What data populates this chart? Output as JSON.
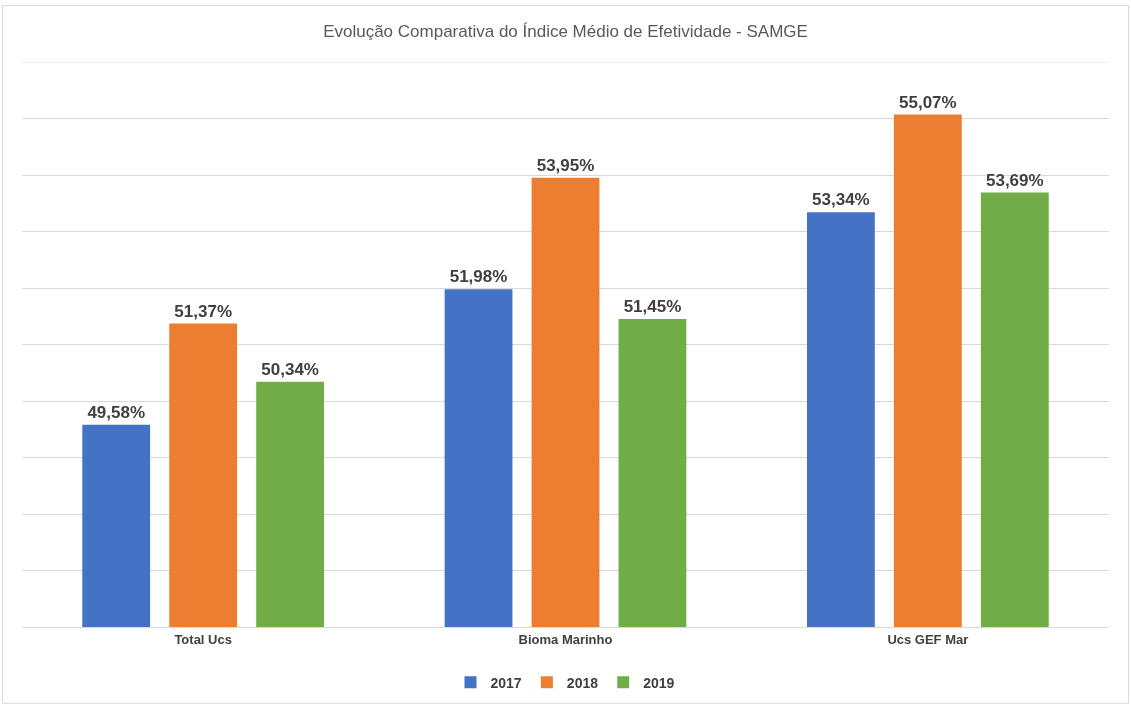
{
  "chart_data": {
    "type": "bar",
    "title": "Evolução Comparativa do Índice Médio de Efetividade - SAMGE",
    "categories": [
      "Total Ucs",
      "Bioma Marinho",
      "Ucs GEF Mar"
    ],
    "series": [
      {
        "name": "2017",
        "color": "#4472c4",
        "values": [
          49.58,
          51.98,
          53.34
        ],
        "value_labels": [
          "49,58%",
          "51,98%",
          "53,34%"
        ]
      },
      {
        "name": "2018",
        "color": "#ed7d31",
        "values": [
          51.37,
          53.95,
          55.07
        ],
        "value_labels": [
          "51,37%",
          "53,95%",
          "55,07%"
        ]
      },
      {
        "name": "2019",
        "color": "#70ad47",
        "values": [
          50.34,
          51.45,
          53.69
        ],
        "value_labels": [
          "50,34%",
          "51,45%",
          "53,69%"
        ]
      }
    ],
    "ylim": [
      46,
      56
    ],
    "yticks": [
      {
        "value": 46,
        "label": null
      },
      {
        "value": 47,
        "label": null
      },
      {
        "value": 48,
        "label": null
      },
      {
        "value": 49,
        "label": null
      },
      {
        "value": 50,
        "label": null
      },
      {
        "value": 51,
        "label": null
      },
      {
        "value": 52,
        "label": null
      },
      {
        "value": 53,
        "label": null
      },
      {
        "value": 54,
        "label": null
      },
      {
        "value": 55,
        "label": null
      }
    ],
    "grid": "y",
    "legend": "bottom",
    "tick_labels": "x"
  }
}
